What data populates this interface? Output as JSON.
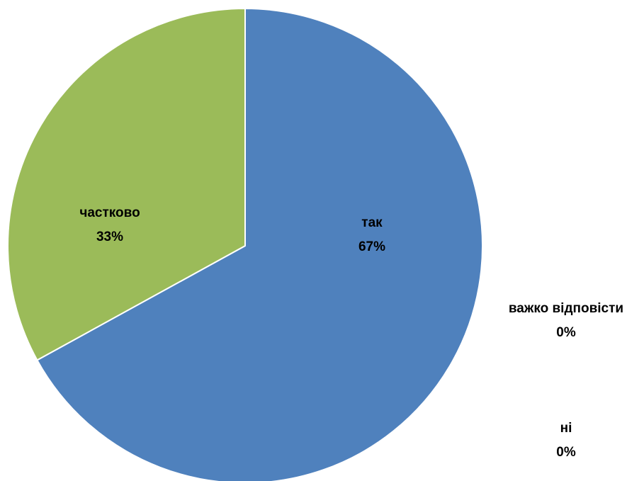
{
  "chart_data": {
    "type": "pie",
    "title": "",
    "start_angle_deg": 0,
    "direction": "clockwise",
    "slices": [
      {
        "label": "так",
        "value": 67,
        "value_label": "67%",
        "color": "#4F81BD"
      },
      {
        "label": "ні",
        "value": 0,
        "value_label": "0%",
        "color": "#C0504D"
      },
      {
        "label": "частково",
        "value": 33,
        "value_label": "33%",
        "color": "#9BBB59"
      },
      {
        "label": "важко відповісти",
        "value": 0,
        "value_label": "0%",
        "color": "#8064A2"
      }
    ]
  }
}
